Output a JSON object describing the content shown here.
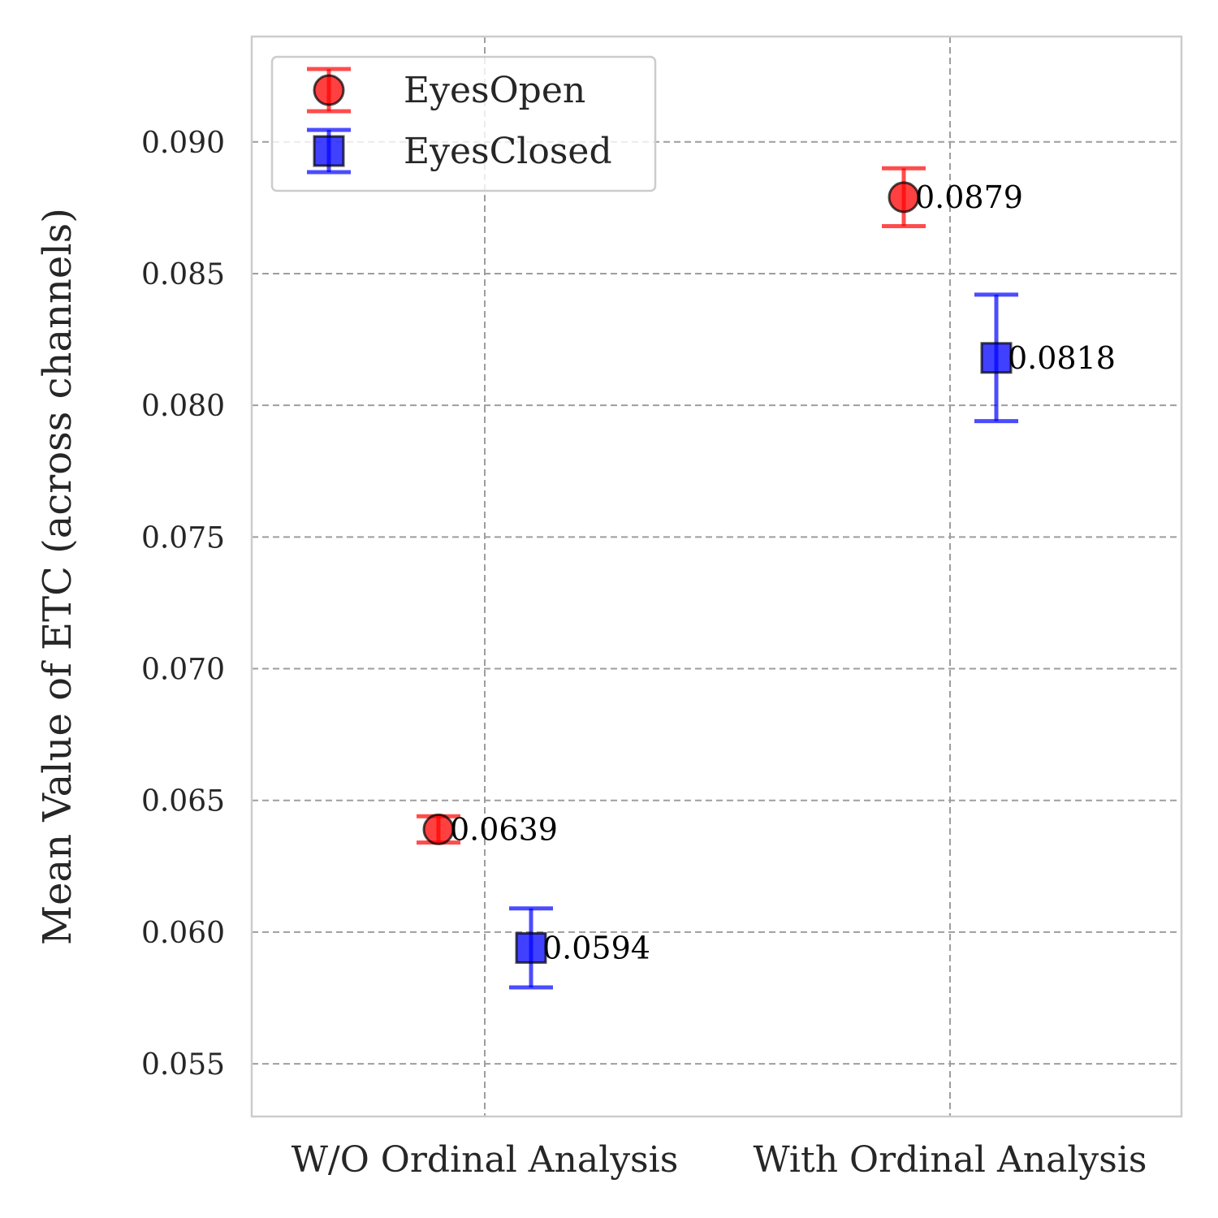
{
  "chart_data": {
    "type": "scatter",
    "categories": [
      "W/O Ordinal Analysis",
      "With Ordinal Analysis"
    ],
    "ylabel": "Mean Value of ETC (across channels)",
    "xlabel": "",
    "ylim": [
      0.053,
      0.094
    ],
    "yticks": [
      "0.055",
      "0.060",
      "0.065",
      "0.070",
      "0.075",
      "0.080",
      "0.085",
      "0.090"
    ],
    "grid": true,
    "legend_position": "top-left",
    "series": [
      {
        "name": "EyesOpen",
        "marker": "circle",
        "color": "#ff0000",
        "values": [
          0.0639,
          0.0879
        ],
        "errors": [
          0.0005,
          0.0011
        ],
        "labels": [
          "0.0639",
          "0.0879"
        ]
      },
      {
        "name": "EyesClosed",
        "marker": "square",
        "color": "#0000ff",
        "values": [
          0.0594,
          0.0818
        ],
        "errors": [
          0.0015,
          0.0024
        ],
        "labels": [
          "0.0594",
          "0.0818"
        ]
      }
    ]
  }
}
